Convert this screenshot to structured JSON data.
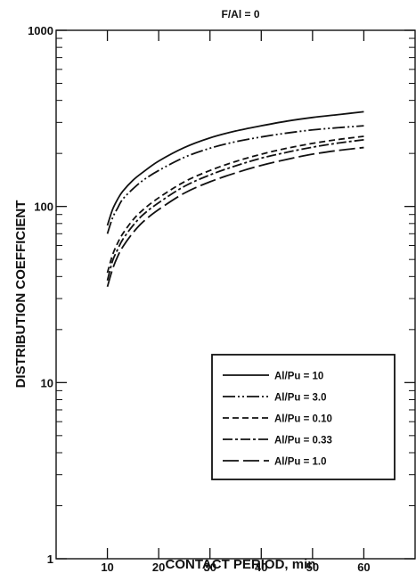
{
  "chart_data": {
    "type": "line",
    "title": "F/Al = 0",
    "xlabel": "CONTACT PERIOD, min",
    "ylabel": "DISTRIBUTION COEFFICIENT",
    "xlim": [
      0,
      70
    ],
    "ylim": [
      1,
      1000
    ],
    "y_scale": "log",
    "x_ticks": [
      10,
      20,
      30,
      40,
      50,
      60
    ],
    "x_tick_labels": [
      "10",
      "20",
      "30",
      "40",
      "50",
      "60"
    ],
    "y_ticks": [
      1,
      10,
      100,
      1000
    ],
    "y_tick_labels": [
      "1",
      "10",
      "100",
      "1000"
    ],
    "grid": false,
    "legend_position": "lower-right",
    "series": [
      {
        "name": "Al/Pu = 10",
        "dash": "solid",
        "x": [
          10,
          11,
          12,
          13,
          15,
          17,
          20,
          25,
          30,
          35,
          40,
          45,
          50,
          55,
          60
        ],
        "y": [
          78,
          96,
          110,
          122,
          141,
          157,
          181,
          216,
          245,
          268,
          287,
          305,
          320,
          332,
          345
        ]
      },
      {
        "name": "Al/Pu = 3.0",
        "dash": "dash-dot-dot",
        "x": [
          10,
          11,
          12,
          13,
          15,
          17,
          20,
          25,
          30,
          35,
          40,
          45,
          50,
          55,
          60
        ],
        "y": [
          70,
          86,
          98,
          110,
          126,
          141,
          160,
          190,
          214,
          233,
          248,
          261,
          272,
          280,
          287
        ]
      },
      {
        "name": "Al/Pu = 0.10",
        "dash": "short-dash",
        "x": [
          10,
          11,
          12,
          13,
          15,
          17,
          20,
          25,
          30,
          35,
          40,
          45,
          50,
          55,
          60
        ],
        "y": [
          42,
          53,
          62,
          70,
          84,
          96,
          112,
          138,
          160,
          180,
          198,
          214,
          228,
          240,
          250
        ]
      },
      {
        "name": "Al/Pu = 0.33",
        "dash": "dash-dot",
        "x": [
          10,
          11,
          12,
          13,
          15,
          17,
          20,
          25,
          30,
          35,
          40,
          45,
          50,
          55,
          60
        ],
        "y": [
          38,
          49,
          57,
          65,
          78,
          90,
          105,
          130,
          151,
          170,
          188,
          203,
          217,
          229,
          239
        ]
      },
      {
        "name": "Al/Pu = 1.0",
        "dash": "long-dash",
        "x": [
          10,
          11,
          12,
          13,
          15,
          17,
          20,
          25,
          30,
          35,
          40,
          45,
          50,
          55,
          60
        ],
        "y": [
          35,
          44,
          52,
          59,
          71,
          82,
          96,
          119,
          138,
          155,
          171,
          185,
          198,
          208,
          216
        ]
      }
    ]
  }
}
